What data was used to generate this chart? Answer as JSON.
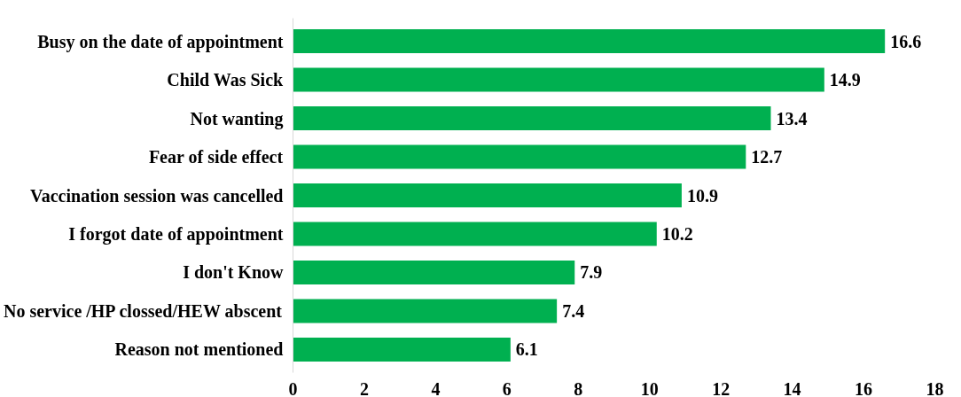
{
  "chart_data": {
    "type": "bar",
    "orientation": "horizontal",
    "categories": [
      "Busy on the date of appointment",
      "Child Was Sick",
      "Not wanting",
      "Fear of side effect",
      "Vaccination session was cancelled",
      "I forgot date of appointment",
      "I don't Know",
      "No service /HP clossed/HEW abscent",
      "Reason not mentioned"
    ],
    "values": [
      16.6,
      14.9,
      13.4,
      12.7,
      10.9,
      10.2,
      7.9,
      7.4,
      6.1
    ],
    "color": "#00b050",
    "xlim": [
      0,
      18
    ],
    "xticks": [
      0,
      2,
      4,
      6,
      8,
      10,
      12,
      14,
      16,
      18
    ],
    "data_labels": true,
    "grid": false
  }
}
